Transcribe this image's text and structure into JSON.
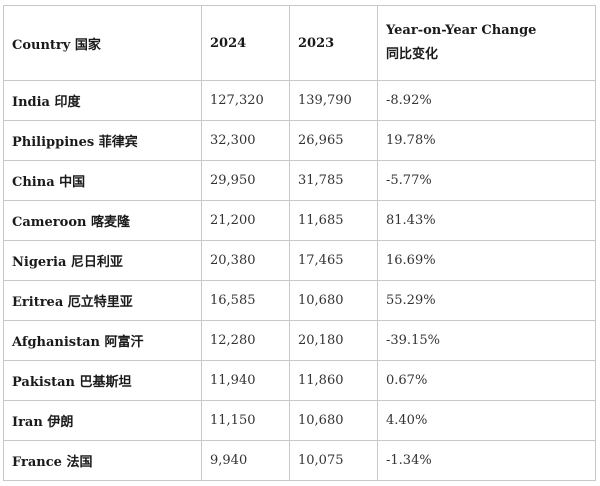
{
  "table": {
    "headers": {
      "country": "Country 国家",
      "y2024": "2024",
      "y2023": "2023",
      "change_line1": "Year-on-Year Change",
      "change_line2": "同比变化"
    },
    "rows": [
      {
        "country": "India 印度",
        "y2024": "127,320",
        "y2023": "139,790",
        "change": "-8.92%"
      },
      {
        "country": "Philippines 菲律宾",
        "y2024": "32,300",
        "y2023": "26,965",
        "change": "19.78%"
      },
      {
        "country": "China 中国",
        "y2024": "29,950",
        "y2023": "31,785",
        "change": "-5.77%"
      },
      {
        "country": "Cameroon 喀麦隆",
        "y2024": "21,200",
        "y2023": "11,685",
        "change": "81.43%"
      },
      {
        "country": "Nigeria 尼日利亚",
        "y2024": "20,380",
        "y2023": "17,465",
        "change": "16.69%"
      },
      {
        "country": "Eritrea 厄立特里亚",
        "y2024": "16,585",
        "y2023": "10,680",
        "change": "55.29%"
      },
      {
        "country": "Afghanistan 阿富汗",
        "y2024": "12,280",
        "y2023": "20,180",
        "change": "-39.15%"
      },
      {
        "country": "Pakistan 巴基斯坦",
        "y2024": "11,940",
        "y2023": "11,860",
        "change": "0.67%"
      },
      {
        "country": "Iran 伊朗",
        "y2024": "11,150",
        "y2023": "10,680",
        "change": "4.40%"
      },
      {
        "country": "France 法国",
        "y2024": "9,940",
        "y2023": "10,075",
        "change": "-1.34%"
      }
    ]
  }
}
